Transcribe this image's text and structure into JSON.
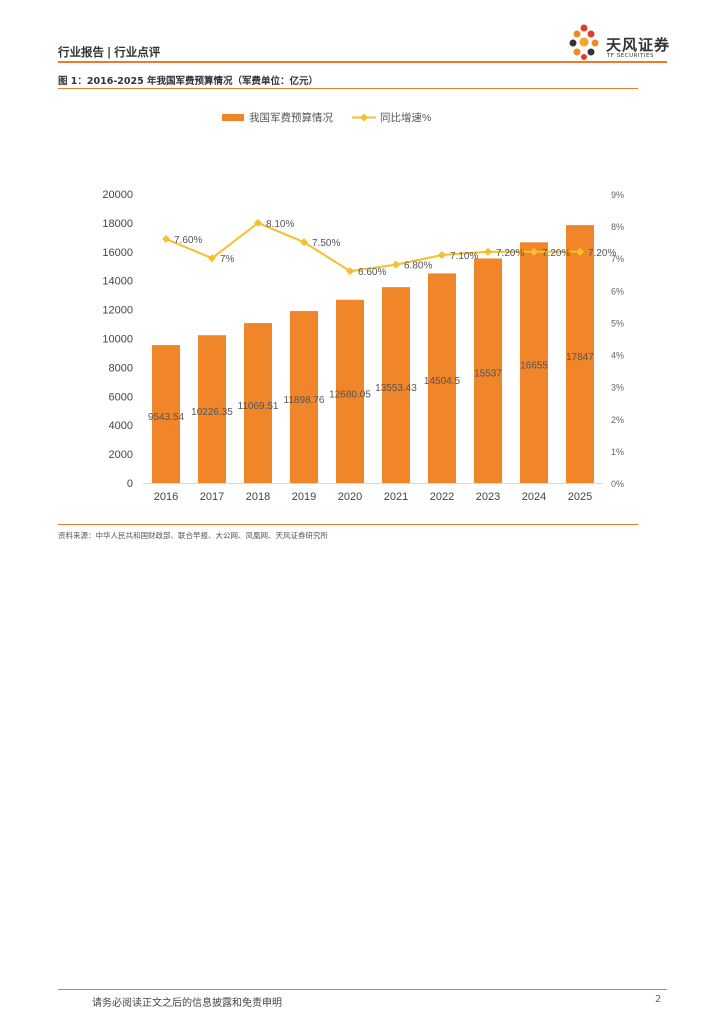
{
  "header": {
    "section": "行业报告",
    "separator": "|",
    "subsection": "行业点评"
  },
  "logo": {
    "name_cn": "天风证券",
    "name_en": "TF SECURITIES"
  },
  "figure": {
    "title": "图 1：2016-2025 年我国军费预算情况（军费单位：亿元）",
    "source": "资料来源：中华人民共和国财政部、联合早报、大公网、凤凰网、天风证券研究所"
  },
  "colors": {
    "accent": "#e87c2a",
    "bar": "#f0852a",
    "line": "#f5bf2d"
  },
  "chart_data": {
    "type": "bar",
    "title": "",
    "categories": [
      "2016",
      "2017",
      "2018",
      "2019",
      "2020",
      "2021",
      "2022",
      "2023",
      "2024",
      "2025"
    ],
    "series": [
      {
        "name": "我国军费预算情况",
        "type": "bar",
        "axis": "left",
        "values": [
          9543.54,
          10226.35,
          11069.51,
          11898.76,
          12680.05,
          13553.43,
          14504.5,
          15537,
          16655,
          17847
        ],
        "labels": [
          "9543.54",
          "10226.35",
          "11069.51",
          "11898.76",
          "12680.05",
          "13553.43",
          "14504.5",
          "15537",
          "16655",
          "17847"
        ]
      },
      {
        "name": "同比增速%",
        "type": "line",
        "axis": "right",
        "values": [
          7.6,
          7.0,
          8.1,
          7.5,
          6.6,
          6.8,
          7.1,
          7.2,
          7.2,
          7.2
        ],
        "labels": [
          "7.60%",
          "7%",
          "8.10%",
          "7.50%",
          "6.60%",
          "6.80%",
          "7.10%",
          "7.20%",
          "7.20%",
          "7.20%"
        ]
      }
    ],
    "y_left": {
      "min": 0,
      "max": 20000,
      "ticks": [
        "0",
        "2000",
        "4000",
        "6000",
        "8000",
        "10000",
        "12000",
        "14000",
        "16000",
        "18000",
        "20000"
      ]
    },
    "y_right": {
      "min": 0,
      "max": 9,
      "ticks": [
        "0%",
        "1%",
        "2%",
        "3%",
        "4%",
        "5%",
        "6%",
        "7%",
        "8%",
        "9%"
      ]
    },
    "legend": {
      "position": "top",
      "items": [
        "我国军费预算情况",
        "同比增速%"
      ]
    },
    "grid": false
  },
  "footer": {
    "disclaimer": "请务必阅读正文之后的信息披露和免责申明",
    "page_number": "2"
  }
}
